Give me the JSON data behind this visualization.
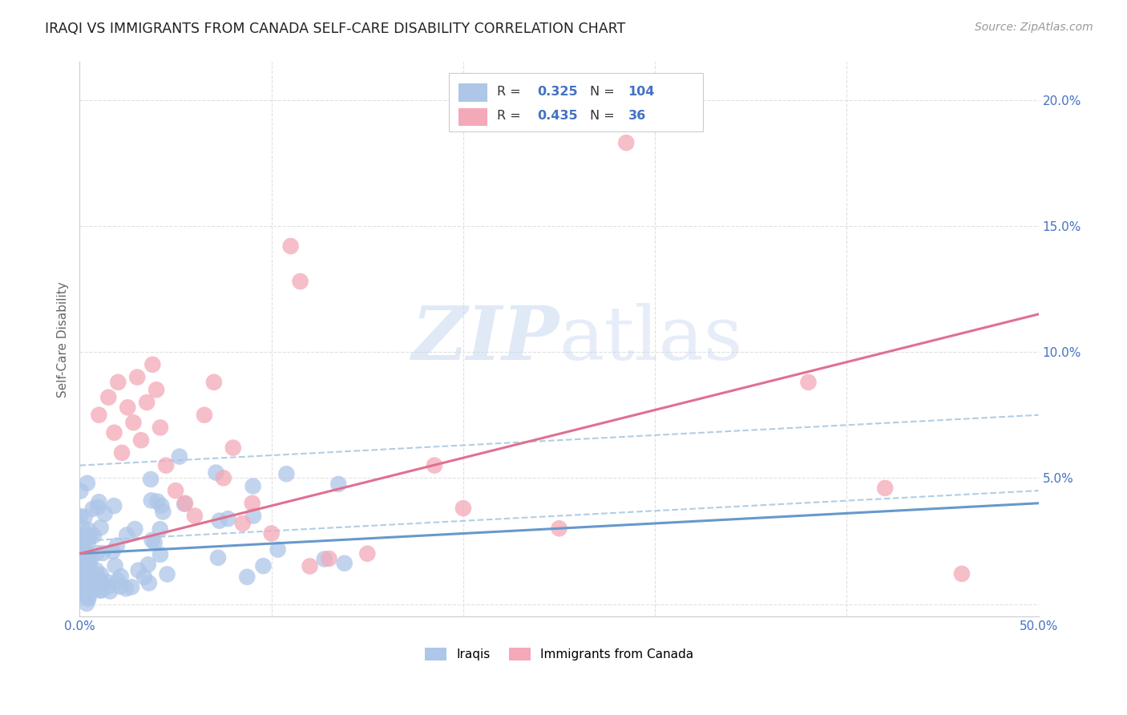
{
  "title": "IRAQI VS IMMIGRANTS FROM CANADA SELF-CARE DISABILITY CORRELATION CHART",
  "source": "Source: ZipAtlas.com",
  "ylabel": "Self-Care Disability",
  "xlim": [
    0.0,
    0.5
  ],
  "ylim": [
    -0.005,
    0.215
  ],
  "xticks": [
    0.0,
    0.1,
    0.2,
    0.3,
    0.4,
    0.5
  ],
  "yticks": [
    0.0,
    0.05,
    0.1,
    0.15,
    0.2
  ],
  "xticklabels": [
    "0.0%",
    "",
    "",
    "",
    "",
    "50.0%"
  ],
  "yticklabels_right": [
    "",
    "5.0%",
    "10.0%",
    "15.0%",
    "20.0%"
  ],
  "background_color": "#ffffff",
  "grid_color": "#e0e0e0",
  "iraqis_color": "#aec6e8",
  "canada_color": "#f4a9b8",
  "iraqis_line_color": "#6699cc",
  "canada_line_color": "#e07090",
  "dash_line_color": "#aac8e0",
  "legend_label_iraqis": "Iraqis",
  "legend_label_canada": "Immigrants from Canada",
  "iraqis_R": "0.325",
  "iraqis_N": "104",
  "canada_R": "0.435",
  "canada_N": "36",
  "watermark_zip": "ZIP",
  "watermark_atlas": "atlas",
  "tick_color": "#4472c4"
}
